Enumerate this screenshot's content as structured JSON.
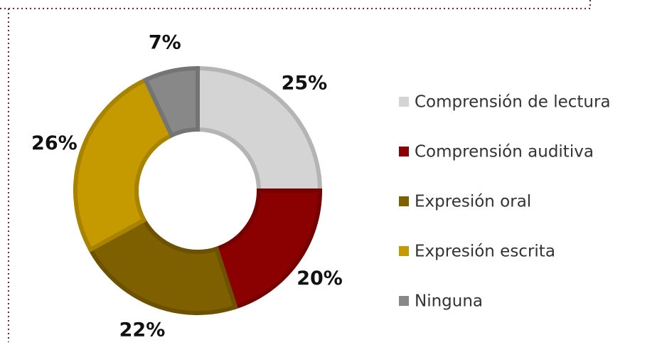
{
  "chart_data": {
    "type": "donut",
    "categories": [
      "Comprensión de lectura",
      "Comprensión auditiva",
      "Expresión oral",
      "Expresión escrita",
      "Ninguna"
    ],
    "values": [
      25,
      20,
      22,
      26,
      7
    ],
    "value_labels": [
      "25%",
      "20%",
      "22%",
      "26%",
      "7%"
    ],
    "colors": [
      "#d4d4d4",
      "#8b0000",
      "#7f6000",
      "#c49a00",
      "#888888"
    ],
    "legend": "right"
  }
}
